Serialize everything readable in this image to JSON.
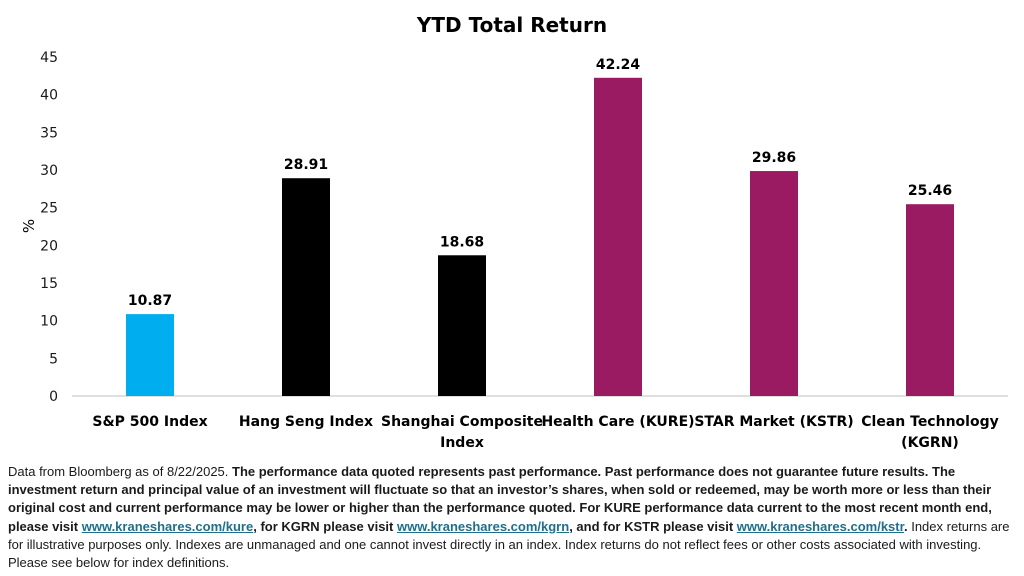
{
  "colors": {
    "benchmark_blue": "#00aeef",
    "benchmark_black": "#000000",
    "kraneshares_magenta": "#9b1b62",
    "axis": "#bfbfbf",
    "link": "#1f6f8b"
  },
  "chart_data": {
    "type": "bar",
    "title": "YTD Total Return",
    "xlabel": "",
    "ylabel": "%",
    "ylim": [
      0,
      45
    ],
    "yticks": [
      0,
      5,
      10,
      15,
      20,
      25,
      30,
      35,
      40,
      45
    ],
    "grid": false,
    "categories": [
      [
        "S&P 500 Index"
      ],
      [
        "Hang Seng Index"
      ],
      [
        "Shanghai Composite",
        "Index"
      ],
      [
        "Health Care (KURE)"
      ],
      [
        "STAR Market (KSTR)"
      ],
      [
        "Clean Technology",
        "(KGRN)"
      ]
    ],
    "values": [
      10.87,
      28.91,
      18.68,
      42.24,
      29.86,
      25.46
    ],
    "data_labels": [
      "10.87",
      "28.91",
      "18.68",
      "42.24",
      "29.86",
      "25.46"
    ],
    "bar_colors": [
      "#00aeef",
      "#000000",
      "#000000",
      "#9b1b62",
      "#9b1b62",
      "#9b1b62"
    ]
  },
  "disclaimer": {
    "intro": "Data from Bloomberg as of 8/22/2025. ",
    "bold_text": "The performance data quoted represents past performance. Past performance does not guarantee future results. The investment return and principal value of an investment will fluctuate so that an investor’s shares, when sold or redeemed, may be worth more or less than their original cost and current performance may be lower or higher than the performance quoted. For KURE performance data current to the most recent month end, please visit ",
    "link_kure": "www.kraneshares.com/kure",
    "mid1": ", for KGRN please visit ",
    "link_kgrn": "www.kraneshares.com/kgrn",
    "mid2": ", and for KSTR please visit ",
    "link_kstr": "www.kraneshares.com/kstr",
    "end_bold": ".",
    "outro": " Index returns are for illustrative purposes only. Indexes are unmanaged and one cannot invest directly in an index. Index returns do not reflect fees or other costs associated with investing. Please see below for index definitions."
  }
}
